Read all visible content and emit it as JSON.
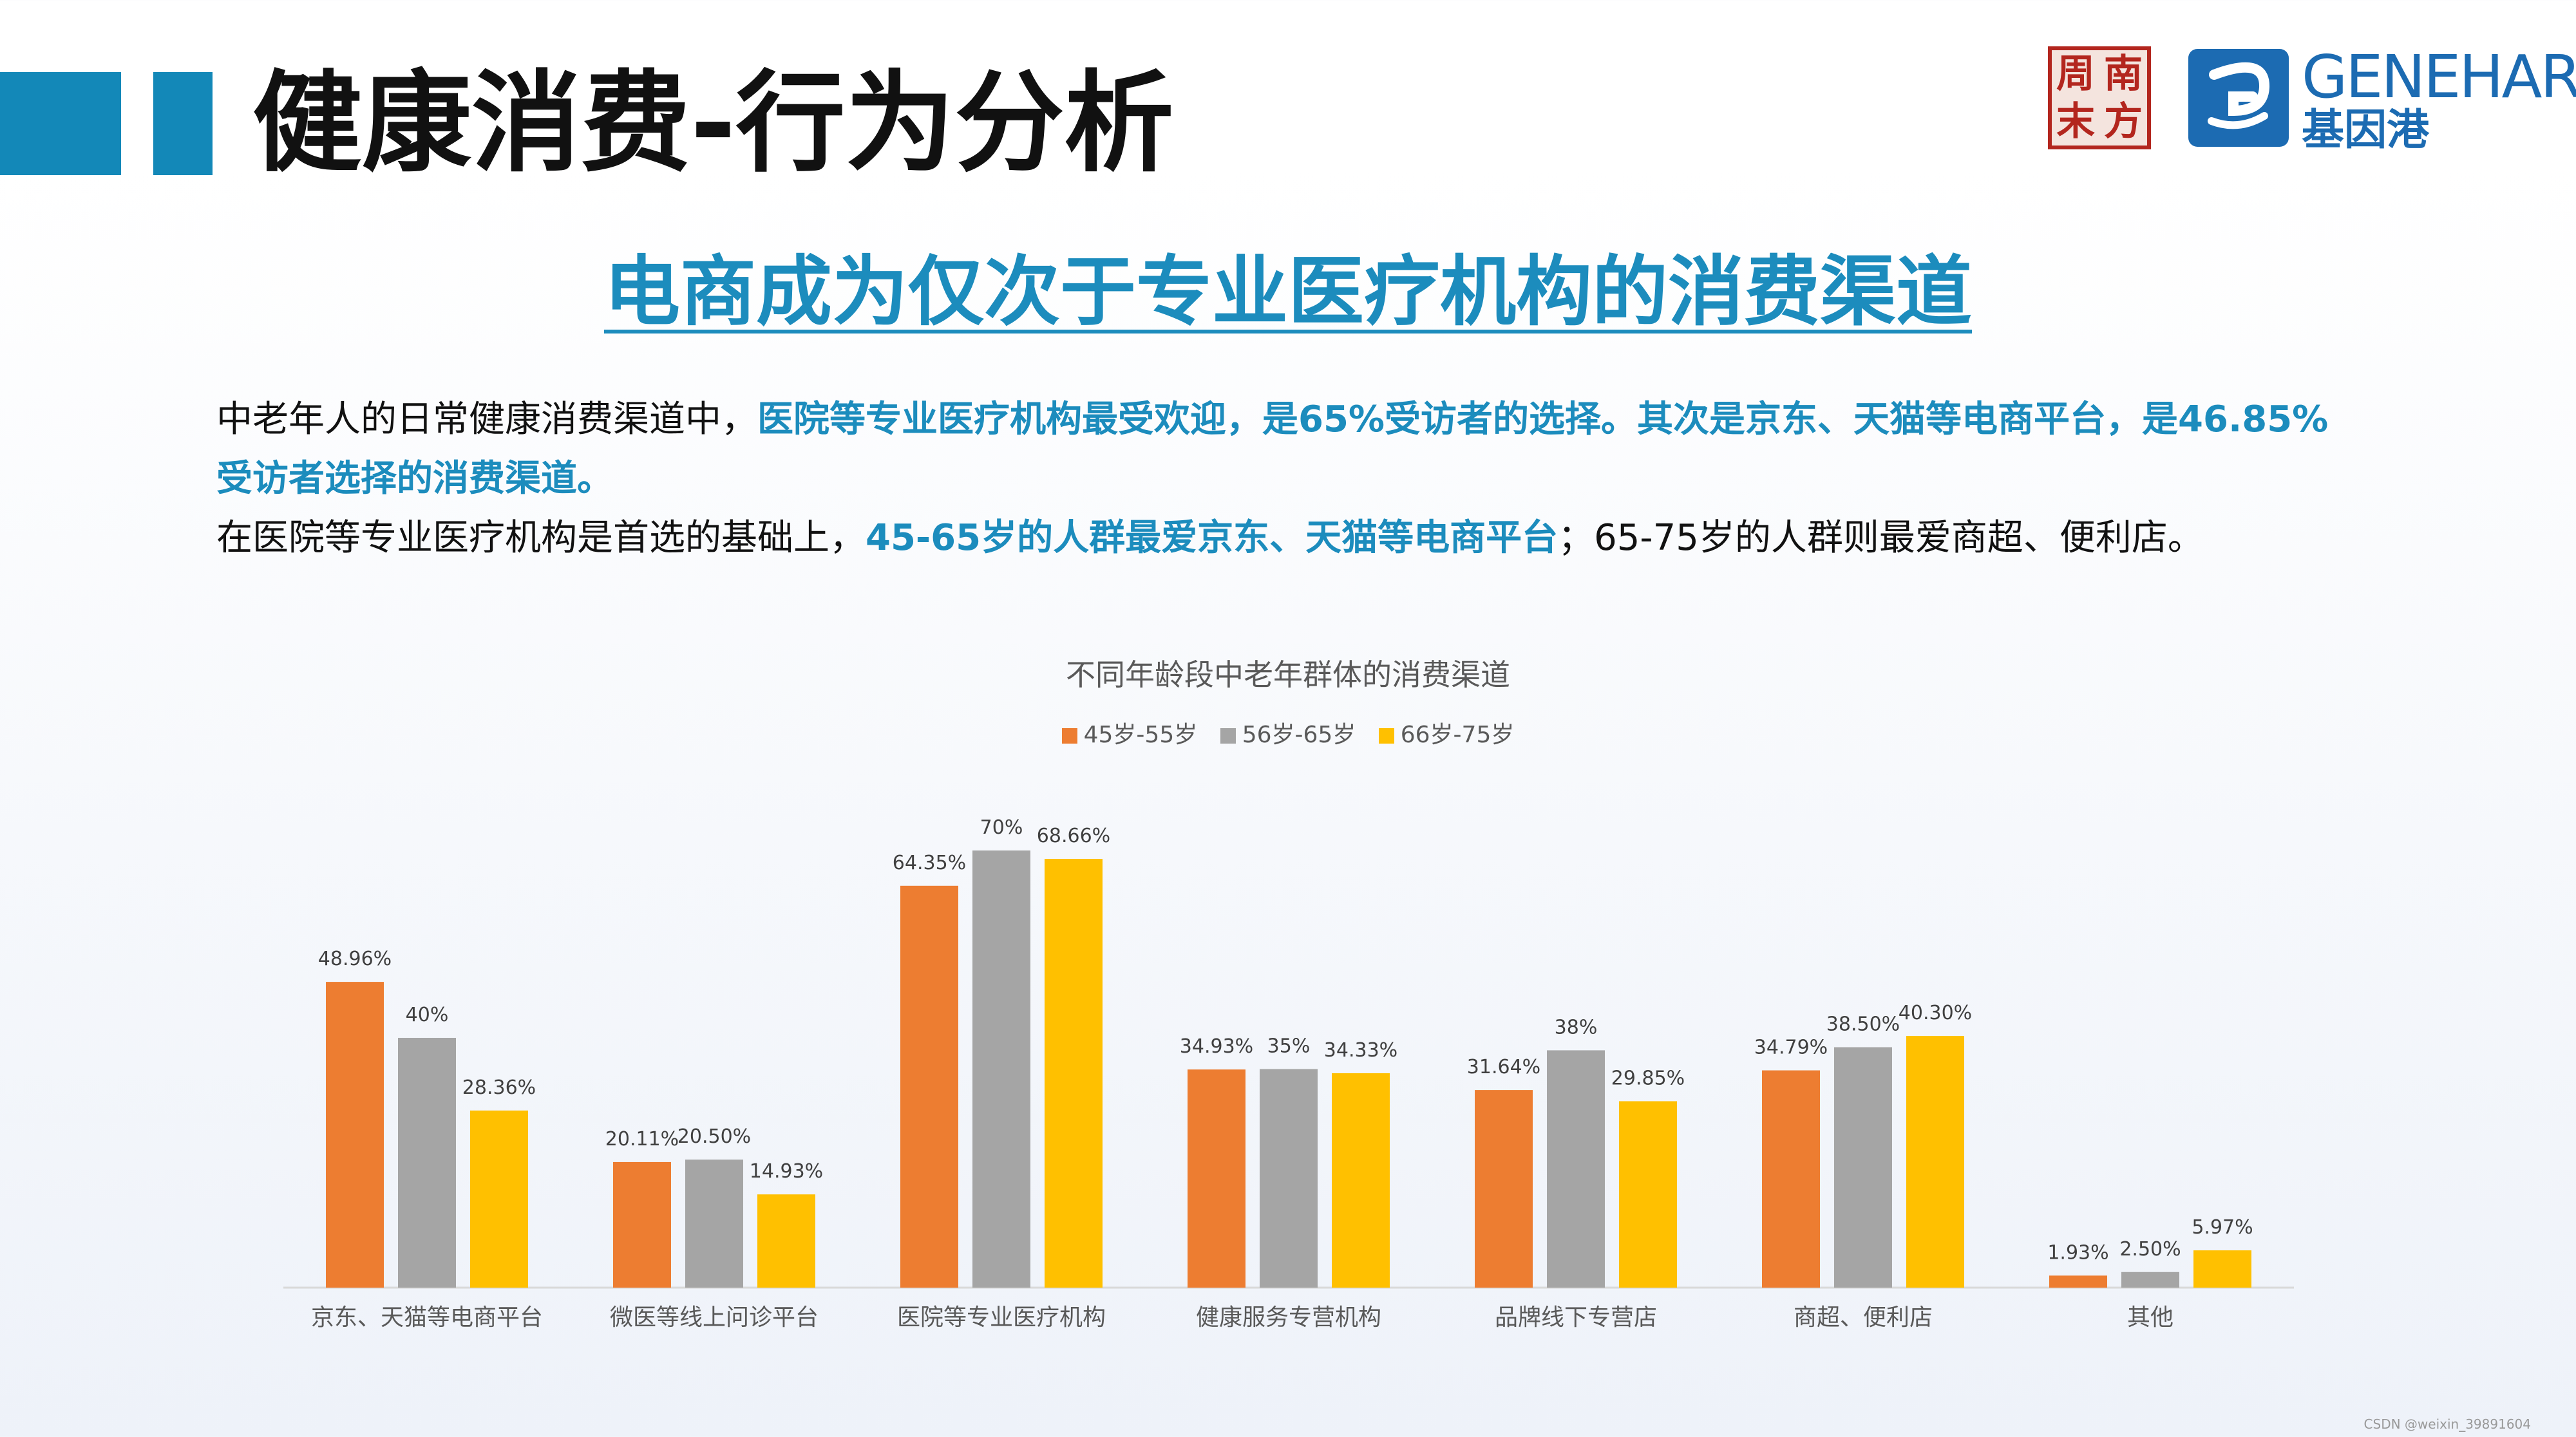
{
  "header": {
    "title": "健康消费-行为分析",
    "logo": {
      "seal_chars": [
        "周",
        "南",
        "末",
        "方"
      ],
      "name": "GENEHARBOR",
      "cn_name": "基因港"
    }
  },
  "headline": "电商成为仅次于专业医疗机构的消费渠道",
  "paragraphs": {
    "p1_a": "中老年人的日常健康消费渠道中，",
    "p1_b": "医院等专业医疗机构最受欢迎，是65%受访者的选择。其次是京东、天猫等电商平台，是46.85%",
    "p1_c": "受访者选择的消费渠道。",
    "p2_a": "在医院等专业医疗机构是首选的基础上，",
    "p2_b": "45-65岁的人群最爱京东、天猫等电商平台",
    "p2_c": "；65-75岁的人群则最爱商超、便利店。"
  },
  "colors": {
    "accent": "#1c8cbd",
    "series_1": "#ed7d31",
    "series_2": "#a5a5a5",
    "series_3": "#ffc000"
  },
  "chart_data": {
    "type": "bar",
    "title": "不同年龄段中老年群体的消费渠道",
    "categories": [
      "京东、天猫等电商平台",
      "微医等线上问诊平台",
      "医院等专业医疗机构",
      "健康服务专营机构",
      "品牌线下专营店",
      "商超、便利店",
      "其他"
    ],
    "series": [
      {
        "name": "45岁-55岁",
        "values": [
          48.96,
          20.11,
          64.35,
          34.93,
          31.64,
          34.79,
          1.93
        ],
        "labels": [
          "48.96%",
          "20.11%",
          "64.35%",
          "34.93%",
          "31.64%",
          "34.79%",
          "1.93%"
        ]
      },
      {
        "name": "56岁-65岁",
        "values": [
          40,
          20.5,
          70,
          35,
          38,
          38.5,
          2.5
        ],
        "labels": [
          "40%",
          "20.50%",
          "70%",
          "35%",
          "38%",
          "38.50%",
          "2.50%"
        ]
      },
      {
        "name": "66岁-75岁",
        "values": [
          28.36,
          14.93,
          68.66,
          34.33,
          29.85,
          40.3,
          5.97
        ],
        "labels": [
          "28.36%",
          "14.93%",
          "68.66%",
          "34.33%",
          "29.85%",
          "40.30%",
          "5.97%"
        ]
      }
    ],
    "ylim": [
      0,
      70
    ],
    "legend": "top",
    "grid": false,
    "xlabel": "",
    "ylabel": ""
  },
  "watermark": "CSDN @weixin_39891604"
}
